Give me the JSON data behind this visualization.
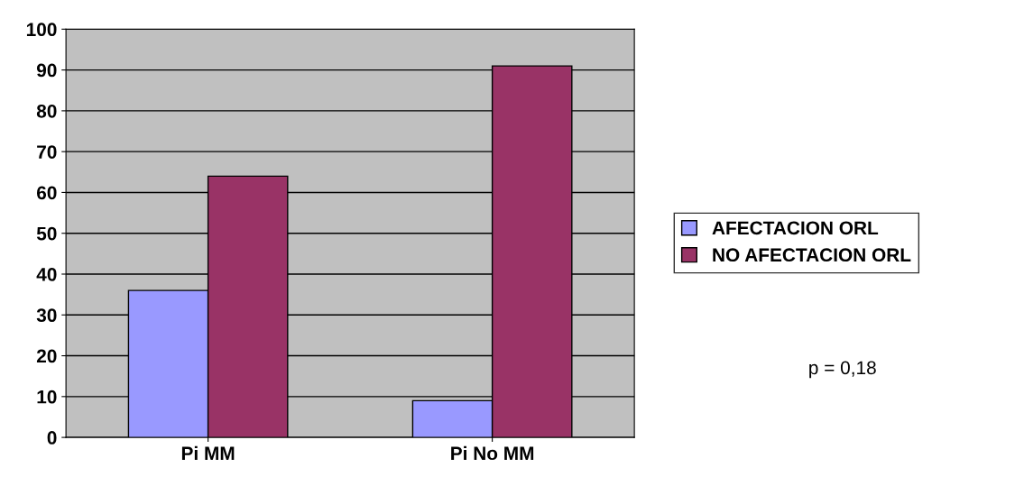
{
  "chart_data": {
    "type": "bar",
    "categories": [
      "Pi MM",
      "Pi No MM"
    ],
    "series": [
      {
        "name": "AFECTACION ORL",
        "color": "#9999ff",
        "values": [
          36,
          9
        ]
      },
      {
        "name": "NO AFECTACION ORL",
        "color": "#993366",
        "values": [
          64,
          91
        ]
      }
    ],
    "ylim": [
      0,
      100
    ],
    "yticks": [
      0,
      10,
      20,
      30,
      40,
      50,
      60,
      70,
      80,
      90,
      100
    ],
    "grid": "y",
    "legend": "right",
    "annotations": [
      "p = 0,18"
    ]
  }
}
